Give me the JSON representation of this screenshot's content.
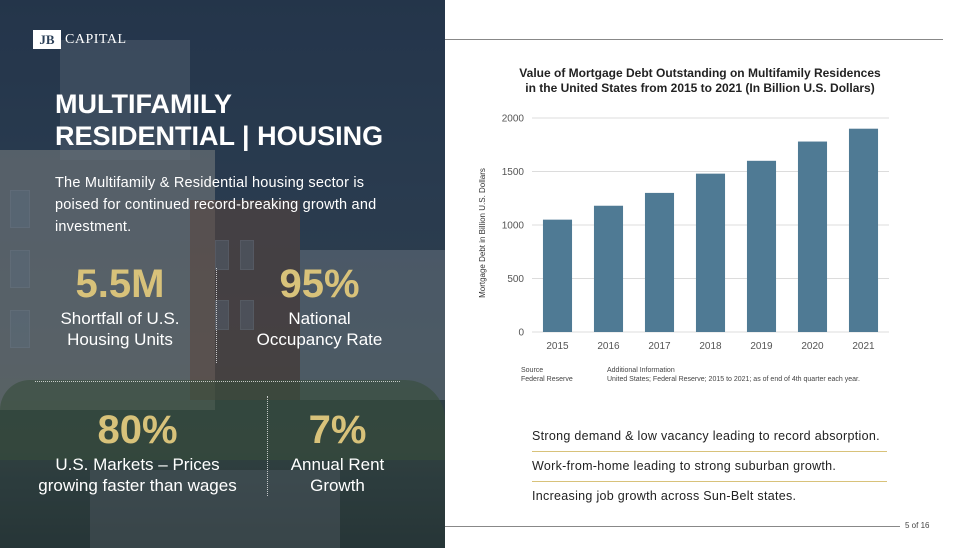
{
  "brand": {
    "mark": "JB",
    "name": "CAPITAL"
  },
  "hero": {
    "title": "MULTIFAMILY\nRESIDENTIAL | HOUSING",
    "intro": "The Multifamily & Residential housing sector is poised for continued record-breaking growth and investment."
  },
  "stats": [
    {
      "value": "5.5M",
      "label": "Shortfall of U.S.\nHousing Units"
    },
    {
      "value": "95%",
      "label": "National\nOccupancy Rate"
    },
    {
      "value": "80%",
      "label": "U.S. Markets – Prices\ngrowing faster than wages"
    },
    {
      "value": "7%",
      "label": "Annual Rent\nGrowth"
    }
  ],
  "colors": {
    "accent_gold": "#d8c27a",
    "bar": "#4f7a94",
    "panel": "#2b3f57"
  },
  "chart_data": {
    "type": "bar",
    "title": "Value of Mortgage Debt Outstanding on Multifamily Residences\nin the United States from 2015 to 2021 (In Billion U.S. Dollars)",
    "xlabel": "",
    "ylabel": "Mortgage Debt in Billion U.S. Dollars",
    "categories": [
      "2015",
      "2016",
      "2017",
      "2018",
      "2019",
      "2020",
      "2021"
    ],
    "values": [
      1050,
      1180,
      1300,
      1480,
      1600,
      1780,
      1900
    ],
    "ylim": [
      0,
      2000
    ],
    "yticks": [
      "0",
      "500",
      "1000",
      "1500",
      "2000"
    ],
    "grid": true
  },
  "source": {
    "source_label": "Source",
    "source_value": "Federal Reserve",
    "info_label": "Additional Information",
    "info_value": "United States; Federal Reserve; 2015 to 2021; as of end of 4th quarter each year."
  },
  "bullets": [
    "Strong demand & low vacancy leading to record absorption.",
    "Work-from-home leading to strong suburban growth.",
    "Increasing job growth across Sun-Belt states."
  ],
  "footer": {
    "page": "5 of 16"
  }
}
